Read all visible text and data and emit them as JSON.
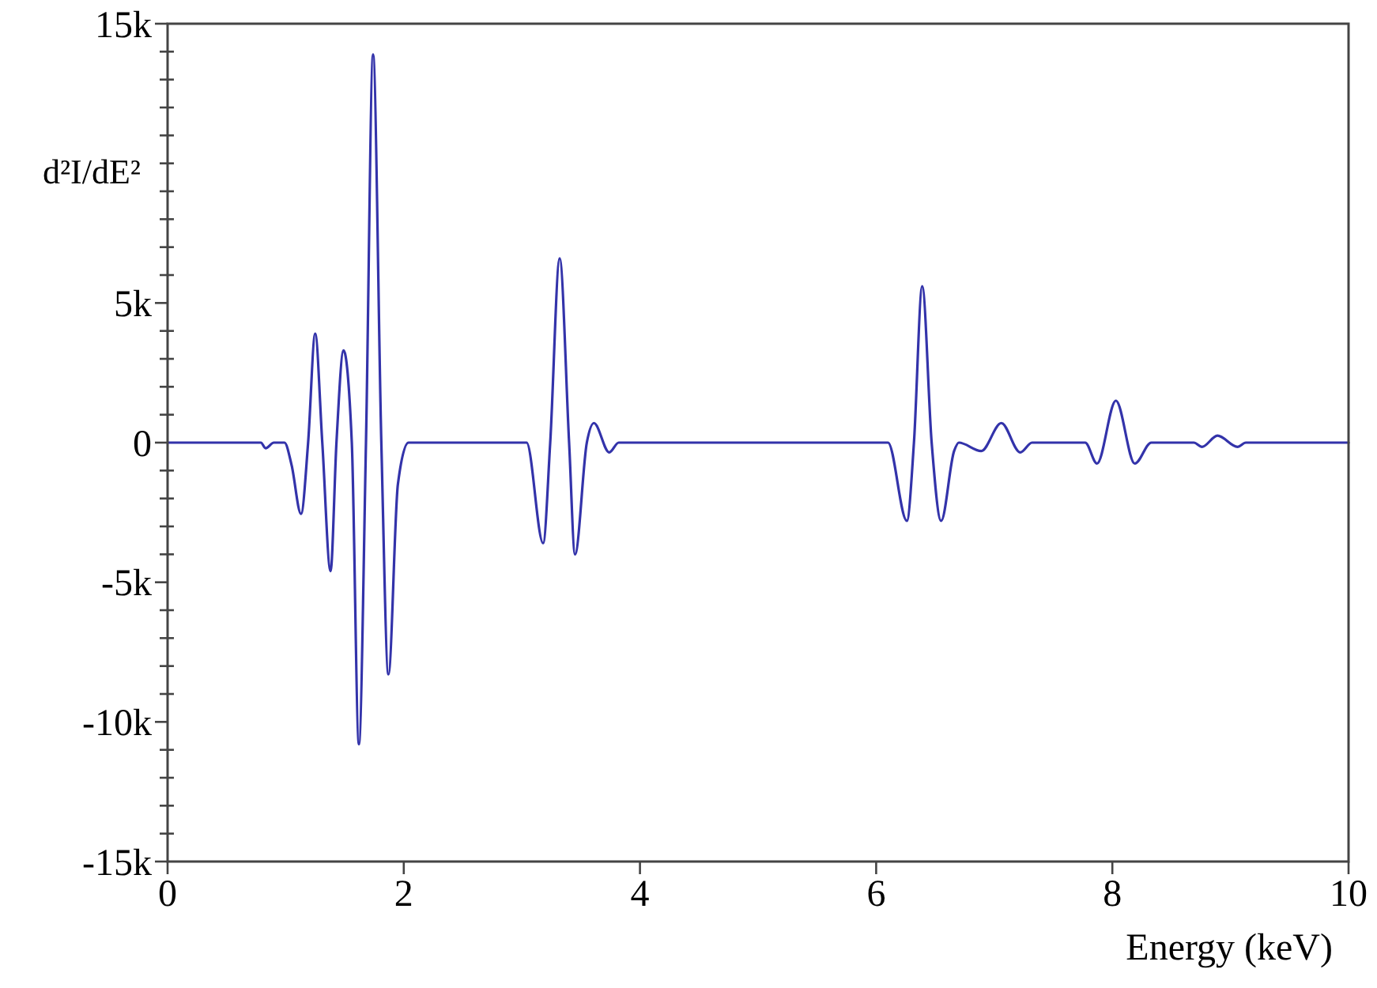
{
  "chart_data": {
    "type": "line",
    "xlabel": "Energy (keV)",
    "ylabel": "d²I/dE²",
    "xlim": [
      0,
      10
    ],
    "ylim": [
      -15000,
      15000
    ],
    "xticks": [
      0,
      2,
      4,
      6,
      8,
      10
    ],
    "yticks": [
      {
        "value": 15000,
        "label": "15k"
      },
      {
        "value": 14000,
        "label": null
      },
      {
        "value": 13000,
        "label": null
      },
      {
        "value": 12000,
        "label": null
      },
      {
        "value": 11000,
        "label": null
      },
      {
        "value": 10000,
        "label": null
      },
      {
        "value": 9000,
        "label": null
      },
      {
        "value": 8000,
        "label": null
      },
      {
        "value": 7000,
        "label": null
      },
      {
        "value": 6000,
        "label": null
      },
      {
        "value": 5000,
        "label": "5k"
      },
      {
        "value": 4000,
        "label": null
      },
      {
        "value": 3000,
        "label": null
      },
      {
        "value": 2000,
        "label": null
      },
      {
        "value": 1000,
        "label": null
      },
      0,
      {
        "value": -1000,
        "label": null
      },
      {
        "value": -2000,
        "label": null
      },
      {
        "value": -3000,
        "label": null
      },
      {
        "value": -4000,
        "label": null
      },
      {
        "value": -5000,
        "label": "-5k"
      },
      {
        "value": -6000,
        "label": null
      },
      {
        "value": -7000,
        "label": null
      },
      {
        "value": -8000,
        "label": null
      },
      {
        "value": -9000,
        "label": null
      },
      {
        "value": -10000,
        "label": "-10k"
      },
      {
        "value": -11000,
        "label": null
      },
      {
        "value": -12000,
        "label": null
      },
      {
        "value": -13000,
        "label": null
      },
      {
        "value": -14000,
        "label": null
      },
      {
        "value": -15000,
        "label": "-15k"
      }
    ],
    "grid": false,
    "marker": "none",
    "line_style": "solid",
    "series": [
      {
        "color": "#3333aa",
        "x": [
          0,
          0.79,
          0.83,
          0.9,
          0.99,
          1.05,
          1.13,
          1.19,
          1.25,
          1.31,
          1.38,
          1.43,
          1.49,
          1.56,
          1.62,
          1.68,
          1.74,
          1.81,
          1.87,
          1.95,
          2.04,
          3.04,
          3.18,
          3.24,
          3.32,
          3.4,
          3.45,
          3.55,
          3.61,
          3.74,
          3.82,
          6.1,
          6.26,
          6.32,
          6.39,
          6.47,
          6.55,
          6.66,
          6.7,
          6.89,
          7.06,
          7.22,
          7.32,
          7.77,
          7.87,
          8.03,
          8.19,
          8.33,
          8.69,
          8.76,
          8.89,
          9.06,
          9.13,
          10
        ],
        "values": [
          0,
          0,
          -200,
          0,
          0,
          -800,
          -2550,
          0,
          3900,
          0,
          -4600,
          0,
          3300,
          0,
          -10800,
          0,
          13900,
          0,
          -8300,
          -1500,
          0,
          0,
          -3600,
          0,
          6600,
          0,
          -4000,
          0,
          700,
          -350,
          0,
          0,
          -2800,
          0,
          5600,
          0,
          -2800,
          -300,
          0,
          -300,
          700,
          -350,
          0,
          0,
          -750,
          1500,
          -750,
          0,
          0,
          -150,
          250,
          -150,
          0,
          0
        ]
      }
    ]
  }
}
